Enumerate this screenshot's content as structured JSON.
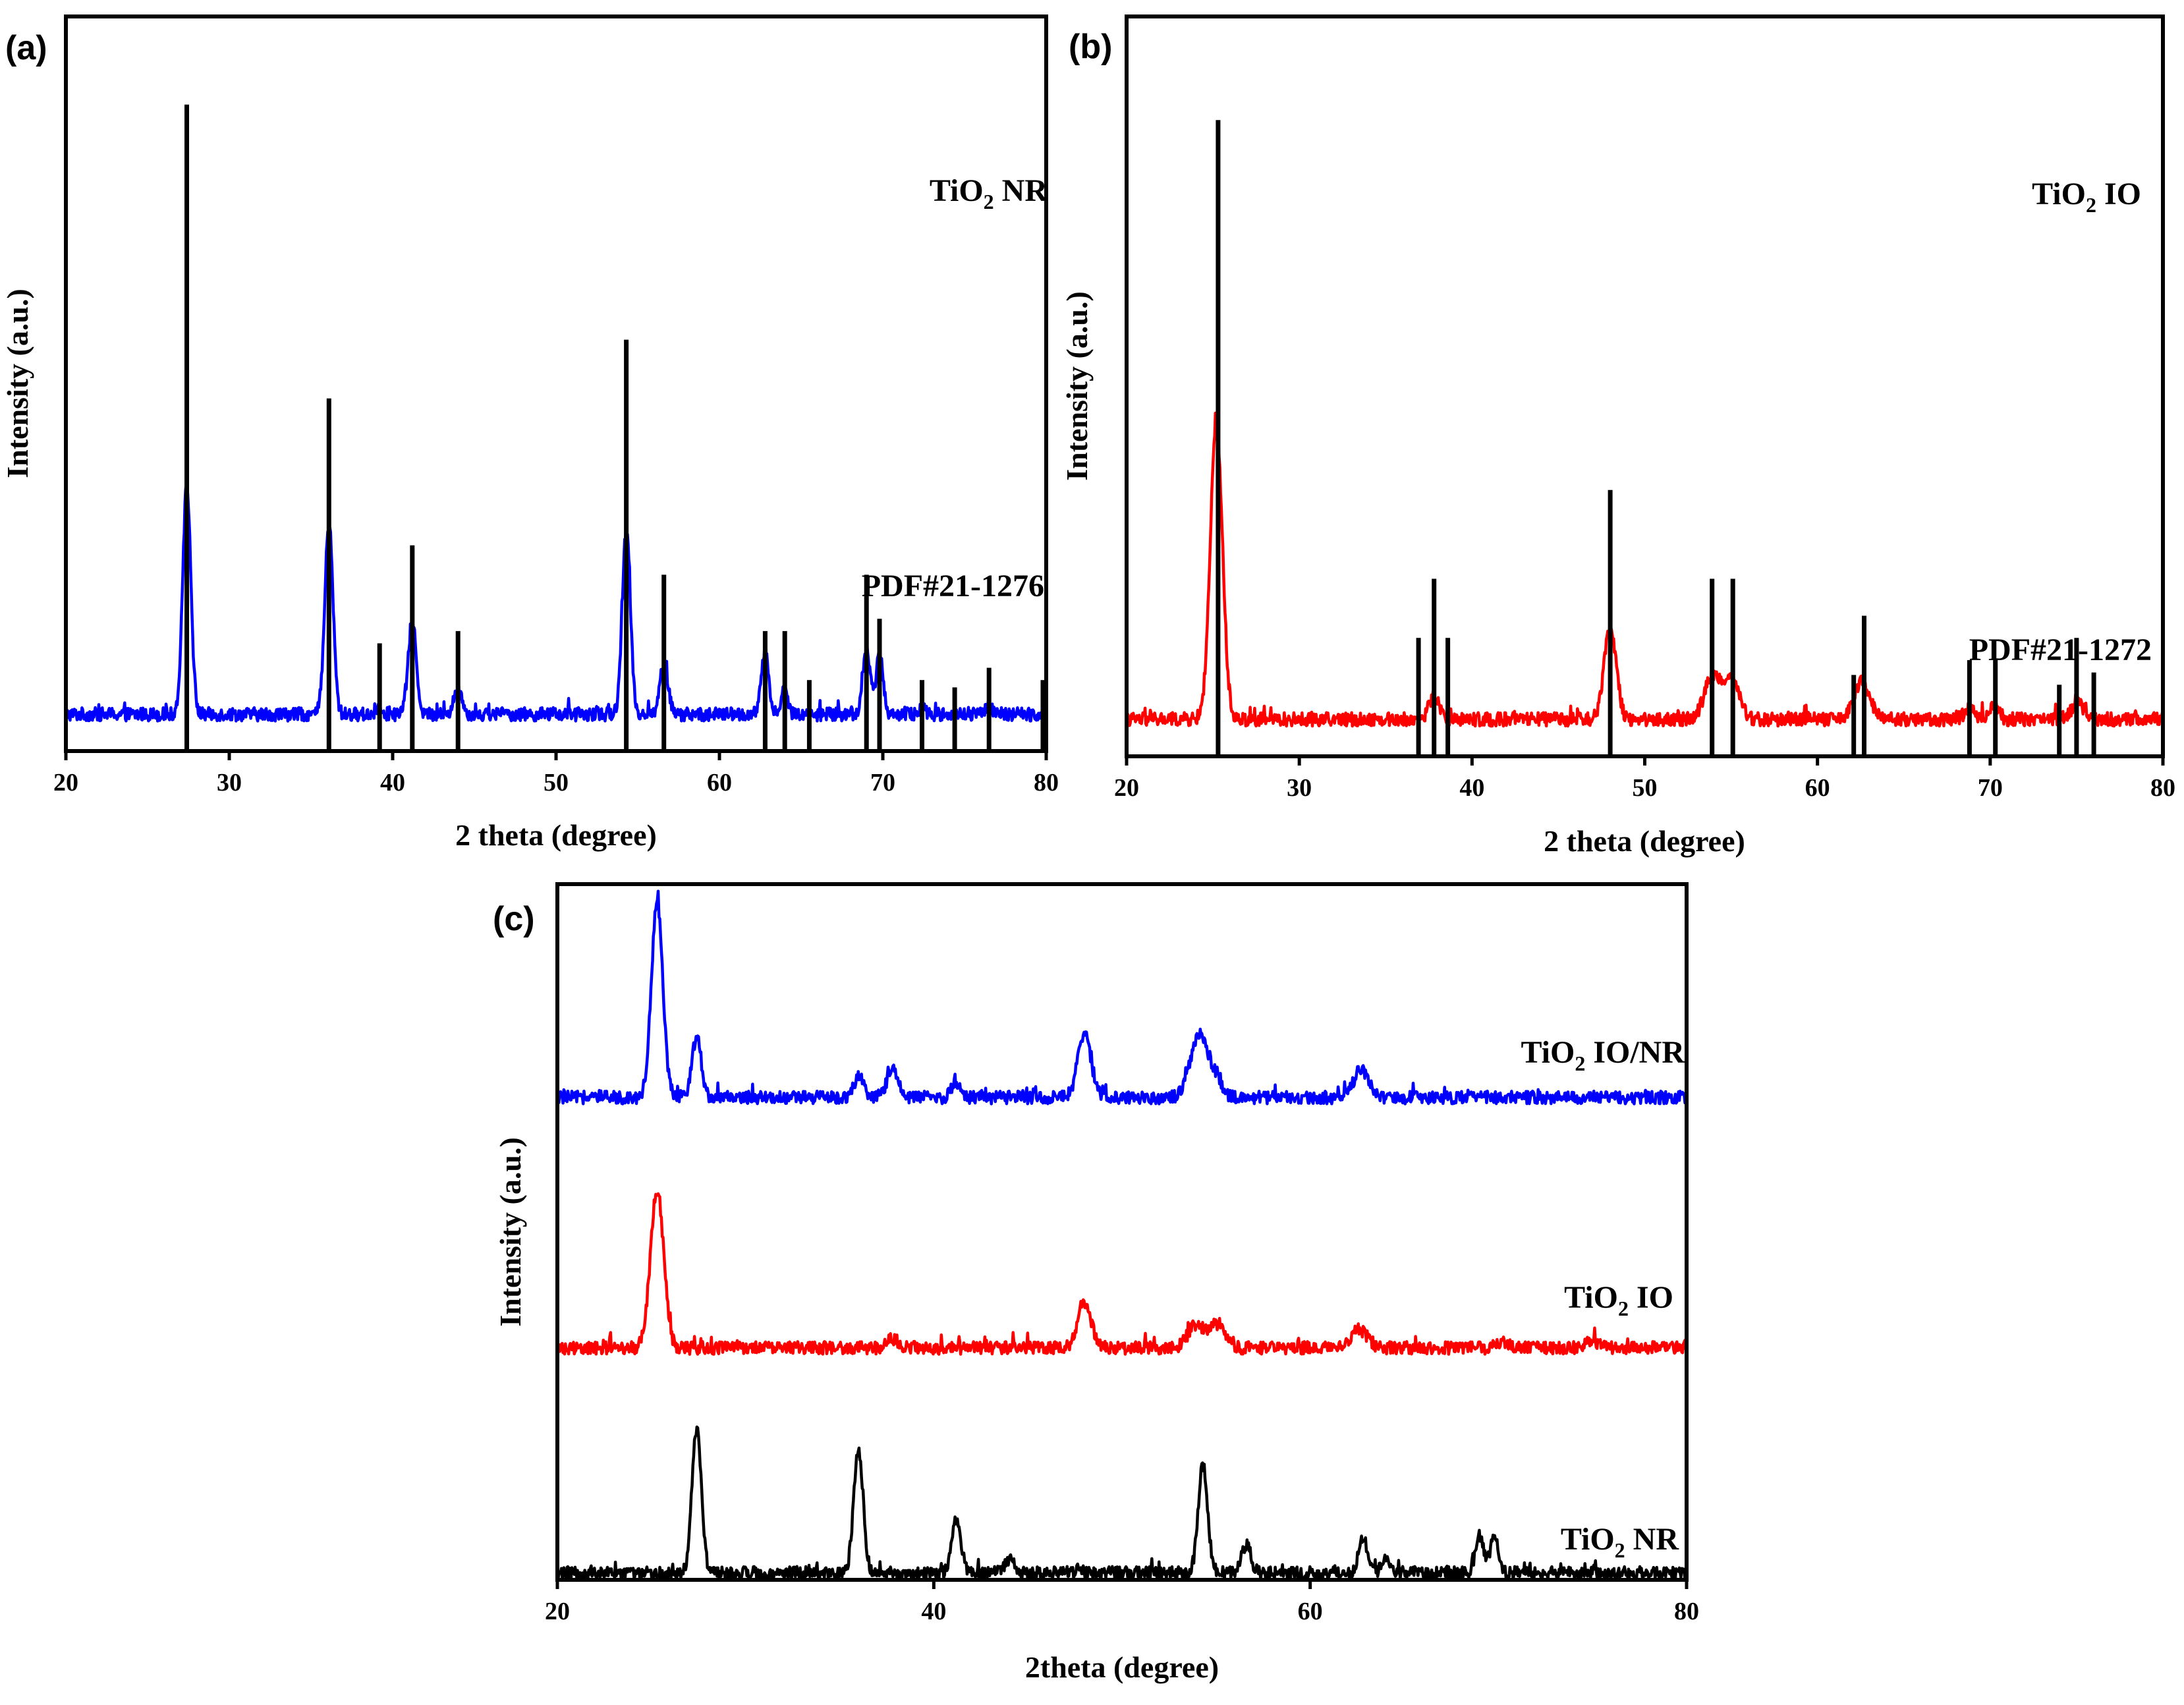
{
  "chart_data": [
    {
      "id": "a",
      "type": "line",
      "panel_label": "(a)",
      "xlabel": "2 theta (degree)",
      "ylabel": "Intensity (a.u.)",
      "xlim": [
        20,
        80
      ],
      "xticks": [
        20,
        30,
        40,
        50,
        60,
        70,
        80
      ],
      "series": [
        {
          "name": "TiO2 NR",
          "label_main": "TiO",
          "label_sub": "2",
          "label_rest": " NR",
          "color": "#0000ff",
          "kind": "xrd",
          "baseline": 1.5,
          "peaks": [
            [
              27.4,
              9.3,
              0.25
            ],
            [
              36.1,
              7.8,
              0.25
            ],
            [
              39.2,
              0.3,
              0.2
            ],
            [
              41.2,
              3.8,
              0.25
            ],
            [
              44.0,
              1.0,
              0.25
            ],
            [
              54.3,
              7.5,
              0.25
            ],
            [
              56.6,
              2.0,
              0.25
            ],
            [
              62.8,
              2.7,
              0.22
            ],
            [
              64.0,
              1.0,
              0.2
            ],
            [
              69.0,
              2.7,
              0.22
            ],
            [
              69.8,
              2.5,
              0.22
            ],
            [
              72.4,
              0.3,
              0.2
            ],
            [
              76.5,
              0.3,
              0.2
            ]
          ]
        },
        {
          "name": "PDF#21-1276",
          "label_main": "PDF#21-1276",
          "label_sub": "",
          "label_rest": "",
          "color": "#000000",
          "kind": "sticks",
          "sticks": [
            [
              27.4,
              26.4
            ],
            [
              36.1,
              14.4
            ],
            [
              39.2,
              4.4
            ],
            [
              41.2,
              8.4
            ],
            [
              44.0,
              4.9
            ],
            [
              54.3,
              16.8
            ],
            [
              56.6,
              7.2
            ],
            [
              62.8,
              4.9
            ],
            [
              64.0,
              4.9
            ],
            [
              65.5,
              2.9
            ],
            [
              69.0,
              7.2
            ],
            [
              69.8,
              5.4
            ],
            [
              72.4,
              2.9
            ],
            [
              74.4,
              2.6
            ],
            [
              76.5,
              3.4
            ],
            [
              79.8,
              2.9
            ]
          ]
        }
      ]
    },
    {
      "id": "b",
      "type": "line",
      "panel_label": "(b)",
      "xlabel": "2 theta (degree)",
      "ylabel": "Intensity (a.u.)",
      "xlim": [
        20,
        80
      ],
      "xticks": [
        20,
        30,
        40,
        50,
        60,
        70,
        80
      ],
      "series": [
        {
          "name": "TiO2 IO",
          "label_main": "TiO",
          "label_sub": "2",
          "label_rest": " IO",
          "color": "#ff0000",
          "kind": "xrd",
          "baseline": 1.5,
          "peaks": [
            [
              25.2,
              12.0,
              0.35
            ],
            [
              37.8,
              0.9,
              0.3
            ],
            [
              48.0,
              3.7,
              0.35
            ],
            [
              53.9,
              1.7,
              0.45
            ],
            [
              55.0,
              1.7,
              0.45
            ],
            [
              62.6,
              1.5,
              0.45
            ],
            [
              68.8,
              0.4,
              0.3
            ],
            [
              70.2,
              0.5,
              0.3
            ],
            [
              75.1,
              0.6,
              0.4
            ]
          ]
        },
        {
          "name": "PDF#21-1272",
          "label_main": "PDF#21-1272",
          "label_sub": "",
          "label_rest": "",
          "color": "#000000",
          "kind": "sticks",
          "sticks": [
            [
              25.3,
              25.8
            ],
            [
              36.9,
              4.8
            ],
            [
              37.8,
              7.2
            ],
            [
              38.6,
              4.8
            ],
            [
              48.0,
              10.8
            ],
            [
              53.9,
              7.2
            ],
            [
              55.1,
              7.2
            ],
            [
              62.1,
              3.3
            ],
            [
              62.7,
              5.7
            ],
            [
              68.8,
              3.9
            ],
            [
              70.3,
              3.9
            ],
            [
              74.0,
              2.9
            ],
            [
              75.0,
              4.8
            ],
            [
              76.0,
              3.4
            ]
          ]
        }
      ]
    },
    {
      "id": "c",
      "type": "line",
      "panel_label": "(c)",
      "xlabel": "2theta (degree)",
      "ylabel": "Intensity (a.u.)",
      "xlim": [
        20,
        80
      ],
      "xticks": [
        20,
        40,
        60,
        80
      ],
      "series": [
        {
          "name": "TiO2 IO/NR",
          "label_main": "TiO",
          "label_sub": "2",
          "label_rest": " IO/NR",
          "color": "#0000ff",
          "kind": "xrd",
          "baseline": 20.8,
          "peaks": [
            [
              25.3,
              8.5,
              0.3
            ],
            [
              27.4,
              2.6,
              0.25
            ],
            [
              36.0,
              0.9,
              0.25
            ],
            [
              37.8,
              1.2,
              0.3
            ],
            [
              41.2,
              0.6,
              0.25
            ],
            [
              48.0,
              2.7,
              0.35
            ],
            [
              53.9,
              1.8,
              0.4
            ],
            [
              54.3,
              1.5,
              0.3
            ],
            [
              55.0,
              1.0,
              0.3
            ],
            [
              62.7,
              1.2,
              0.4
            ]
          ]
        },
        {
          "name": "TiO2 IO",
          "label_main": "TiO",
          "label_sub": "2",
          "label_rest": " IO",
          "color": "#ff0000",
          "kind": "xrd",
          "baseline": 10.0,
          "peaks": [
            [
              25.3,
              6.8,
              0.35
            ],
            [
              37.8,
              0.4,
              0.3
            ],
            [
              48.0,
              2.0,
              0.35
            ],
            [
              53.9,
              1.0,
              0.4
            ],
            [
              55.0,
              1.0,
              0.4
            ],
            [
              62.6,
              0.8,
              0.45
            ],
            [
              70.2,
              0.3,
              0.3
            ],
            [
              75.0,
              0.3,
              0.4
            ]
          ]
        },
        {
          "name": "TiO2 NR",
          "label_main": "TiO",
          "label_sub": "2",
          "label_rest": " NR",
          "color": "#000000",
          "kind": "xrd",
          "baseline": 0.3,
          "peaks": [
            [
              27.4,
              6.2,
              0.25
            ],
            [
              36.0,
              5.3,
              0.25
            ],
            [
              41.2,
              2.3,
              0.25
            ],
            [
              44.0,
              0.6,
              0.25
            ],
            [
              54.3,
              4.6,
              0.25
            ],
            [
              56.6,
              1.2,
              0.25
            ],
            [
              62.8,
              1.6,
              0.22
            ],
            [
              64.0,
              0.6,
              0.2
            ],
            [
              69.0,
              1.6,
              0.22
            ],
            [
              69.8,
              1.6,
              0.22
            ]
          ]
        }
      ]
    }
  ]
}
